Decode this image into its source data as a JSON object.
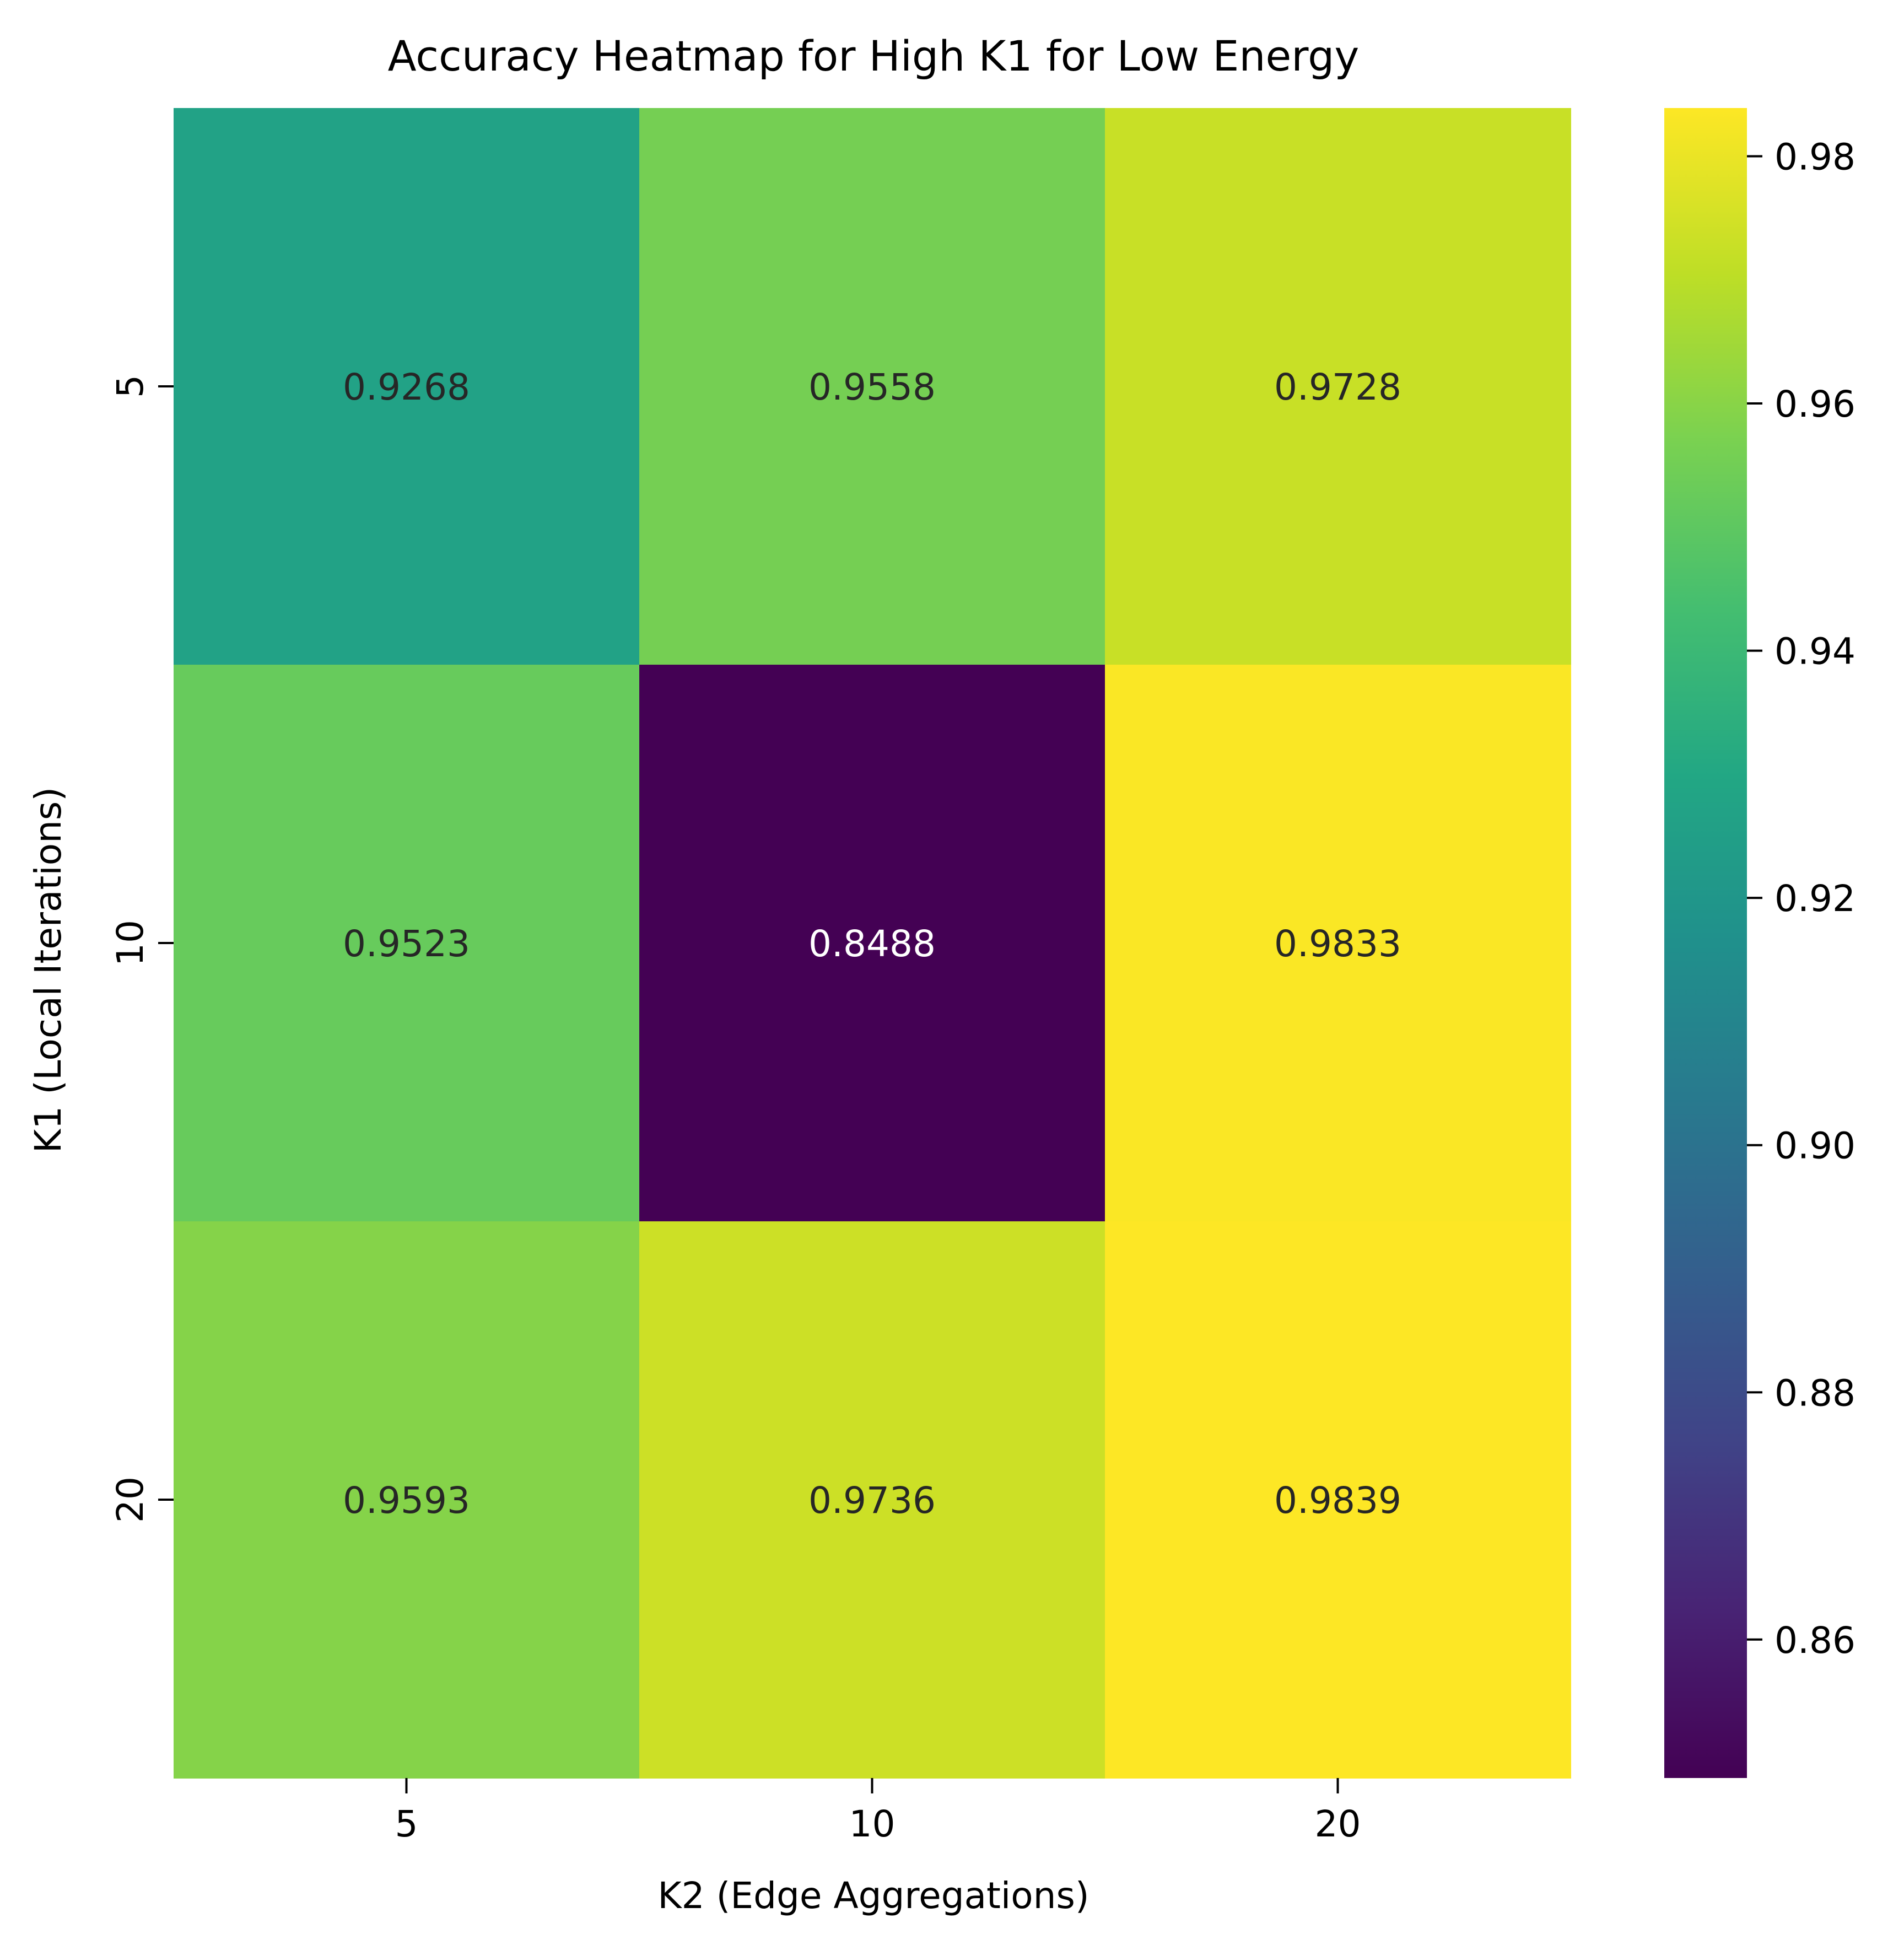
{
  "chart_data": {
    "type": "heatmap",
    "title": "Accuracy Heatmap for High K1 for Low Energy",
    "xlabel": "K2 (Edge Aggregations)",
    "ylabel": "K1 (Local Iterations)",
    "x_categories": [
      "5",
      "10",
      "20"
    ],
    "y_categories": [
      "5",
      "10",
      "20"
    ],
    "values": [
      [
        0.9268,
        0.9558,
        0.9728
      ],
      [
        0.9523,
        0.8488,
        0.9833
      ],
      [
        0.9593,
        0.9736,
        0.9839
      ]
    ],
    "cell_labels": [
      [
        "0.9268",
        "0.9558",
        "0.9728"
      ],
      [
        "0.9523",
        "0.8488",
        "0.9833"
      ],
      [
        "0.9593",
        "0.9736",
        "0.9839"
      ]
    ],
    "colormap": "viridis",
    "colorbar": {
      "vmin": 0.8488,
      "vmax": 0.9839,
      "ticks": [
        0.86,
        0.88,
        0.9,
        0.92,
        0.94,
        0.96,
        0.98
      ],
      "tick_labels": [
        "0.86",
        "0.88",
        "0.90",
        "0.92",
        "0.94",
        "0.96",
        "0.98"
      ]
    },
    "colors": {
      "text_dark": "#262626",
      "text_light": "#ffffff",
      "axis": "#000000"
    }
  }
}
